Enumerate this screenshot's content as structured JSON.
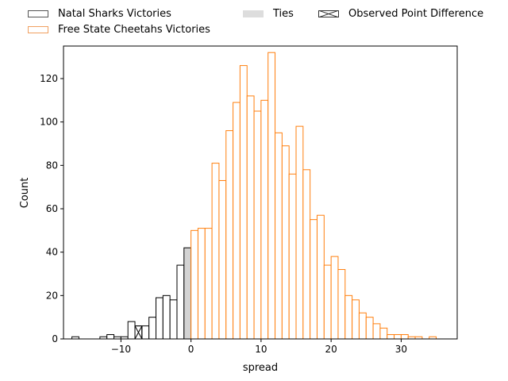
{
  "chart_data": {
    "type": "bar",
    "xlabel": "spread",
    "ylabel": "Count",
    "xlim": [
      -18.2,
      38
    ],
    "ylim": [
      0,
      135
    ],
    "x_ticks": [
      -10,
      0,
      10,
      20,
      30
    ],
    "y_ticks": [
      0,
      20,
      40,
      60,
      80,
      100,
      120
    ],
    "bin_width": 1,
    "legend_placement": "top, outside plot",
    "series": [
      {
        "name": "Natal Sharks Victories",
        "color": "#000000",
        "bins": [
          {
            "x": -17,
            "count": 1
          },
          {
            "x": -13,
            "count": 1
          },
          {
            "x": -12,
            "count": 2
          },
          {
            "x": -11,
            "count": 1
          },
          {
            "x": -10,
            "count": 1
          },
          {
            "x": -9,
            "count": 8
          },
          {
            "x": -8,
            "count": 6
          },
          {
            "x": -7,
            "count": 6
          },
          {
            "x": -6,
            "count": 10
          },
          {
            "x": -5,
            "count": 19
          },
          {
            "x": -4,
            "count": 20
          },
          {
            "x": -3,
            "count": 18
          },
          {
            "x": -2,
            "count": 34
          }
        ]
      },
      {
        "name": "Ties",
        "color": "#d3d3d3",
        "bins": [
          {
            "x": -1,
            "count": 42
          }
        ]
      },
      {
        "name": "Free State Cheetahs Victories",
        "color": "#ff7f0e",
        "bins": [
          {
            "x": 0,
            "count": 50
          },
          {
            "x": 1,
            "count": 51
          },
          {
            "x": 2,
            "count": 51
          },
          {
            "x": 3,
            "count": 81
          },
          {
            "x": 4,
            "count": 73
          },
          {
            "x": 5,
            "count": 96
          },
          {
            "x": 6,
            "count": 109
          },
          {
            "x": 7,
            "count": 126
          },
          {
            "x": 8,
            "count": 112
          },
          {
            "x": 9,
            "count": 105
          },
          {
            "x": 10,
            "count": 110
          },
          {
            "x": 11,
            "count": 132
          },
          {
            "x": 12,
            "count": 95
          },
          {
            "x": 13,
            "count": 89
          },
          {
            "x": 14,
            "count": 76
          },
          {
            "x": 15,
            "count": 98
          },
          {
            "x": 16,
            "count": 78
          },
          {
            "x": 17,
            "count": 55
          },
          {
            "x": 18,
            "count": 57
          },
          {
            "x": 19,
            "count": 34
          },
          {
            "x": 20,
            "count": 38
          },
          {
            "x": 21,
            "count": 32
          },
          {
            "x": 22,
            "count": 20
          },
          {
            "x": 23,
            "count": 18
          },
          {
            "x": 24,
            "count": 12
          },
          {
            "x": 25,
            "count": 10
          },
          {
            "x": 26,
            "count": 7
          },
          {
            "x": 27,
            "count": 5
          },
          {
            "x": 28,
            "count": 2
          },
          {
            "x": 29,
            "count": 2
          },
          {
            "x": 30,
            "count": 2
          },
          {
            "x": 31,
            "count": 1
          },
          {
            "x": 32,
            "count": 1
          },
          {
            "x": 34,
            "count": 1
          }
        ]
      }
    ],
    "observed": {
      "name": "Observed Point Difference",
      "x": -8,
      "count": 6
    }
  }
}
